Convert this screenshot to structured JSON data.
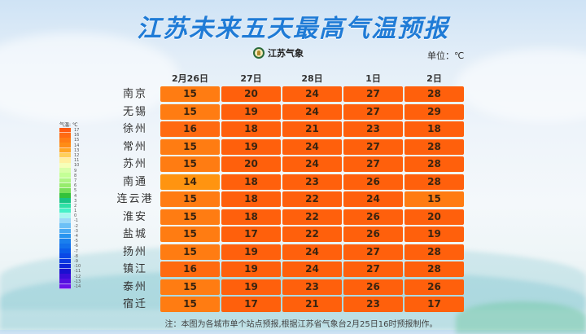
{
  "title": "江苏未来五天最高气温预报",
  "logo_text": "江苏气象",
  "unit_label": "单位：℃",
  "note": "注：本图为各城市单个站点预报,根据江苏省气象台2月25日16时预报制作。",
  "legend": {
    "title": "气温: ℃",
    "items": [
      {
        "label": "17",
        "color": "#ff5a10"
      },
      {
        "label": "16",
        "color": "#ff6a12"
      },
      {
        "label": "15",
        "color": "#ff7c14"
      },
      {
        "label": "14",
        "color": "#ff8c16"
      },
      {
        "label": "13",
        "color": "#ffa526"
      },
      {
        "label": "12",
        "color": "#ffcf5a"
      },
      {
        "label": "11",
        "color": "#fff0a0"
      },
      {
        "label": "10",
        "color": "#f6ffb8"
      },
      {
        "label": "9",
        "color": "#d8ffa8"
      },
      {
        "label": "8",
        "color": "#c4ff96"
      },
      {
        "label": "7",
        "color": "#aef584"
      },
      {
        "label": "6",
        "color": "#96ec6c"
      },
      {
        "label": "5",
        "color": "#78e05a"
      },
      {
        "label": "4",
        "color": "#34c23a"
      },
      {
        "label": "3",
        "color": "#18c486"
      },
      {
        "label": "2",
        "color": "#2ee0a6"
      },
      {
        "label": "1",
        "color": "#46f0c8"
      },
      {
        "label": "0",
        "color": "#a8f6f0"
      },
      {
        "label": "-1",
        "color": "#9ad8f8"
      },
      {
        "label": "-2",
        "color": "#6cc0f6"
      },
      {
        "label": "-3",
        "color": "#4aaaf4"
      },
      {
        "label": "-4",
        "color": "#2894f0"
      },
      {
        "label": "-5",
        "color": "#1a80ee"
      },
      {
        "label": "-6",
        "color": "#1270ec"
      },
      {
        "label": "-7",
        "color": "#0a5cea"
      },
      {
        "label": "-8",
        "color": "#0a48e6"
      },
      {
        "label": "-9",
        "color": "#0836e0"
      },
      {
        "label": "-10",
        "color": "#0a22d8"
      },
      {
        "label": "-11",
        "color": "#1a10d0"
      },
      {
        "label": "-12",
        "color": "#3a0cd8"
      },
      {
        "label": "-13",
        "color": "#5410e0"
      },
      {
        "label": "-14",
        "color": "#6a14e8"
      }
    ]
  },
  "chart_data": {
    "type": "table",
    "title": "江苏未来五天最高气温预报",
    "unit": "℃",
    "columns": [
      "2月26日",
      "27日",
      "28日",
      "1日",
      "2日"
    ],
    "rows": [
      {
        "city": "南京",
        "values": [
          15,
          20,
          24,
          27,
          28
        ]
      },
      {
        "city": "无锡",
        "values": [
          15,
          19,
          24,
          27,
          29
        ]
      },
      {
        "city": "徐州",
        "values": [
          16,
          18,
          21,
          23,
          18
        ]
      },
      {
        "city": "常州",
        "values": [
          15,
          19,
          24,
          27,
          28
        ]
      },
      {
        "city": "苏州",
        "values": [
          15,
          20,
          24,
          27,
          28
        ]
      },
      {
        "city": "南通",
        "values": [
          14,
          18,
          23,
          26,
          28
        ]
      },
      {
        "city": "连云港",
        "values": [
          15,
          18,
          22,
          24,
          15
        ]
      },
      {
        "city": "淮安",
        "values": [
          15,
          18,
          22,
          26,
          20
        ]
      },
      {
        "city": "盐城",
        "values": [
          15,
          17,
          22,
          26,
          19
        ]
      },
      {
        "city": "扬州",
        "values": [
          15,
          19,
          24,
          27,
          28
        ]
      },
      {
        "city": "镇江",
        "values": [
          16,
          19,
          24,
          27,
          28
        ]
      },
      {
        "city": "泰州",
        "values": [
          15,
          19,
          23,
          26,
          26
        ]
      },
      {
        "city": "宿迁",
        "values": [
          15,
          17,
          21,
          23,
          17
        ]
      }
    ],
    "color_scale": {
      "14": "#ff9010",
      "15": "#ff7a10",
      "16": "#ff6810",
      "17_plus": "#ff5e0c"
    }
  }
}
